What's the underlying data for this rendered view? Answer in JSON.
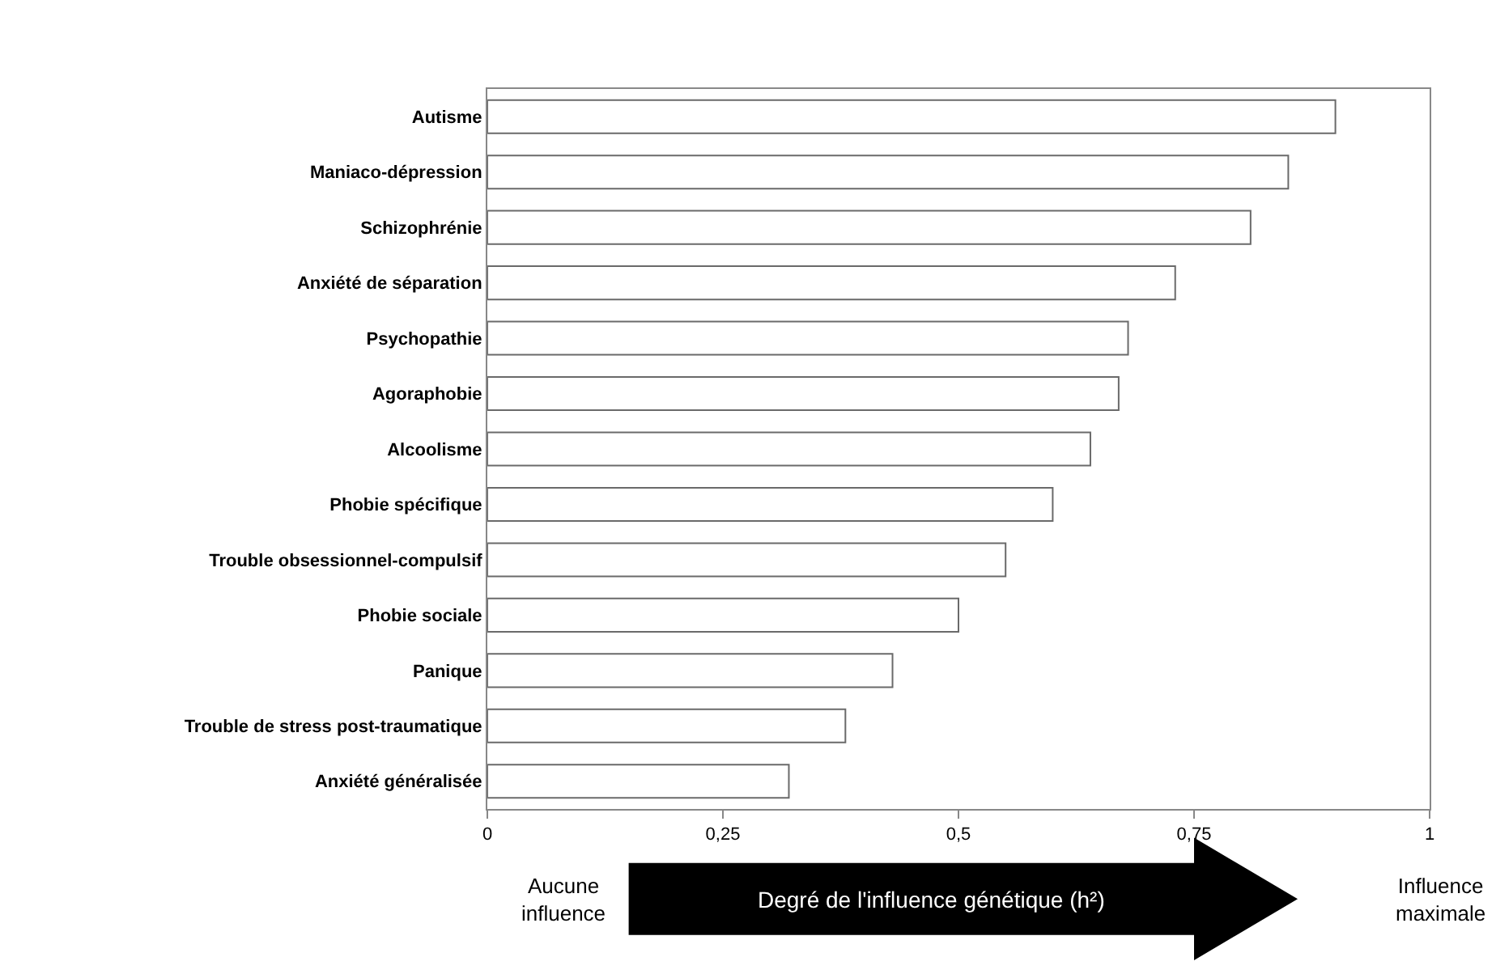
{
  "chart_data": {
    "type": "bar",
    "orientation": "horizontal",
    "categories": [
      "Autisme",
      "Maniaco-dépression",
      "Schizophrénie",
      "Anxiété de séparation",
      "Psychopathie",
      "Agoraphobie",
      "Alcoolisme",
      "Phobie spécifique",
      "Trouble obsessionnel-compulsif",
      "Phobie sociale",
      "Panique",
      "Trouble de stress post-traumatique",
      "Anxiété généralisée"
    ],
    "values": [
      0.9,
      0.85,
      0.81,
      0.73,
      0.68,
      0.67,
      0.64,
      0.6,
      0.55,
      0.5,
      0.43,
      0.38,
      0.32
    ],
    "color": "#ffffff",
    "xlim": [
      0,
      1
    ],
    "xticks": [
      0,
      {
        "value": 0.25,
        "label": "0,25"
      },
      {
        "value": 0.5,
        "label": "0,5"
      },
      {
        "value": 0.75,
        "label": "0,75"
      },
      1
    ],
    "annotations": [
      "Aucune influence",
      "Degré de l'influence génétique (h²)",
      "Influence maximale"
    ]
  }
}
